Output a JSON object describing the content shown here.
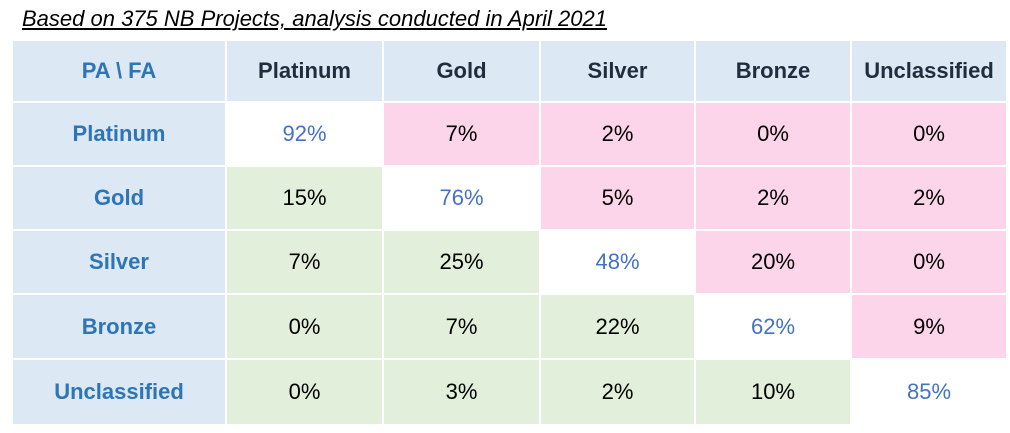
{
  "caption": "Based on 375 NB Projects, analysis conducted in April 2021",
  "chart_data": {
    "type": "table",
    "corner_label": "PA \\ FA",
    "columns": [
      "Platinum",
      "Gold",
      "Silver",
      "Bronze",
      "Unclassified"
    ],
    "rows": [
      {
        "label": "Platinum",
        "values": [
          "92%",
          "7%",
          "2%",
          "0%",
          "0%"
        ]
      },
      {
        "label": "Gold",
        "values": [
          "15%",
          "76%",
          "5%",
          "2%",
          "2%"
        ]
      },
      {
        "label": "Silver",
        "values": [
          "7%",
          "25%",
          "48%",
          "20%",
          "0%"
        ]
      },
      {
        "label": "Bronze",
        "values": [
          "0%",
          "7%",
          "22%",
          "62%",
          "9%"
        ]
      },
      {
        "label": "Unclassified",
        "values": [
          "0%",
          "3%",
          "2%",
          "10%",
          "85%"
        ]
      }
    ]
  },
  "colors": {
    "header_bg": "#dce8f4",
    "above_diagonal": "#fdd5ea",
    "below_diagonal": "#e2efda",
    "diagonal_text": "#4472c4",
    "row_label_text": "#2e75b6"
  }
}
